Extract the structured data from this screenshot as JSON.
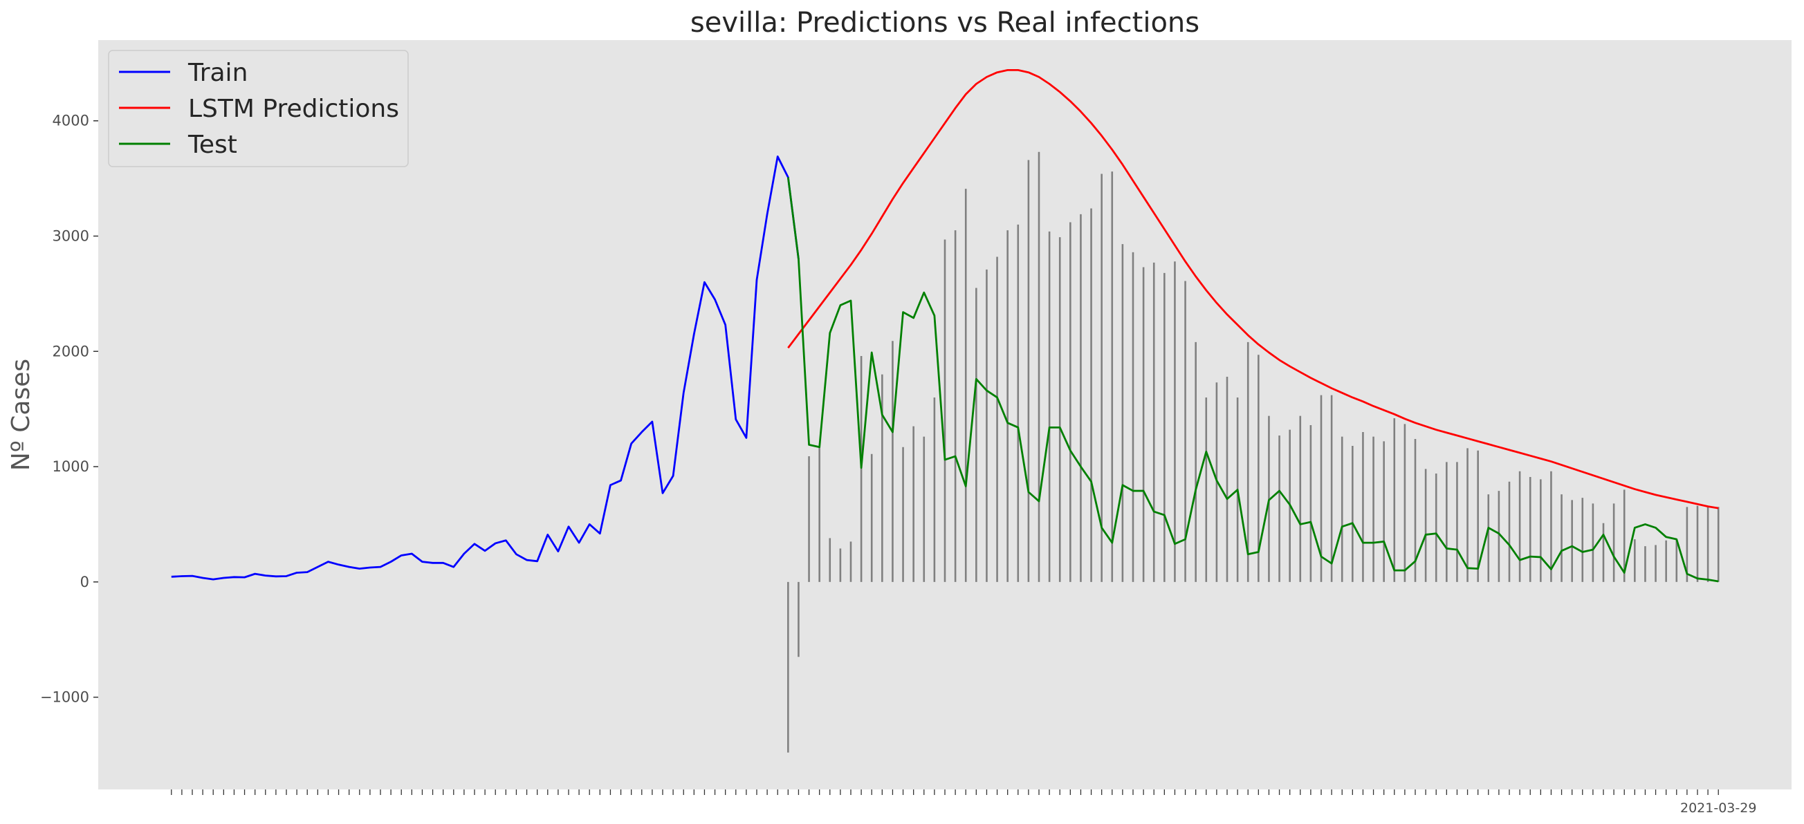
{
  "chart_data": {
    "type": "line",
    "title": "sevilla: Predictions vs Real infections",
    "xlabel": "",
    "ylabel": "Nº Cases",
    "yticks": [
      -1000,
      0,
      1000,
      2000,
      3000,
      4000
    ],
    "ytick_labels": [
      "−1000",
      "0",
      "1000",
      "2000",
      "3000",
      "4000"
    ],
    "ylim": [
      -1800,
      4700
    ],
    "xlim": [
      -7,
      155
    ],
    "grid": false,
    "legend_position": "top-left",
    "background_color": "#e5e5e5",
    "last_xtick_label": "2021-03-29",
    "series": [
      {
        "name": "Train",
        "color": "#0000ff",
        "start_index": 0,
        "values": [
          45,
          50,
          52,
          35,
          22,
          35,
          42,
          40,
          70,
          55,
          48,
          50,
          80,
          85,
          130,
          175,
          150,
          130,
          115,
          125,
          130,
          175,
          230,
          245,
          175,
          165,
          165,
          130,
          245,
          330,
          270,
          335,
          360,
          240,
          190,
          180,
          410,
          265,
          480,
          340,
          500,
          420,
          840,
          880,
          1200,
          1300,
          1390,
          770,
          920,
          1640,
          2150,
          2600,
          2450,
          2230,
          1410,
          1250,
          2620,
          3190,
          3690,
          3510,
          2800
        ]
      },
      {
        "name": "LSTM Predictions",
        "color": "#ff0000",
        "start_index": 59,
        "values": [
          2030,
          2150,
          2270,
          2390,
          2510,
          2630,
          2750,
          2880,
          3020,
          3170,
          3320,
          3460,
          3590,
          3720,
          3850,
          3980,
          4110,
          4230,
          4320,
          4380,
          4420,
          4440,
          4440,
          4420,
          4380,
          4320,
          4250,
          4170,
          4080,
          3980,
          3870,
          3750,
          3620,
          3480,
          3340,
          3200,
          3060,
          2920,
          2780,
          2650,
          2530,
          2420,
          2320,
          2230,
          2140,
          2060,
          1990,
          1925,
          1870,
          1820,
          1770,
          1725,
          1680,
          1640,
          1600,
          1565,
          1525,
          1490,
          1455,
          1415,
          1380,
          1350,
          1320,
          1295,
          1270,
          1245,
          1220,
          1195,
          1170,
          1145,
          1120,
          1095,
          1070,
          1045,
          1015,
          985,
          955,
          925,
          895,
          865,
          835,
          805,
          780,
          755,
          735,
          715,
          695,
          675,
          655,
          640
        ]
      },
      {
        "name": "Test",
        "color": "#008000",
        "start_index": 59,
        "values": [
          3510,
          2800,
          1190,
          1170,
          2160,
          2400,
          2440,
          990,
          1990,
          1450,
          1300,
          2340,
          2290,
          2510,
          2310,
          1060,
          1090,
          830,
          1760,
          1660,
          1600,
          1380,
          1340,
          780,
          700,
          1340,
          1340,
          1140,
          1000,
          870,
          470,
          340,
          840,
          790,
          790,
          610,
          580,
          330,
          370,
          800,
          1130,
          880,
          720,
          800,
          240,
          260,
          710,
          790,
          670,
          500,
          520,
          220,
          160,
          480,
          510,
          340,
          340,
          350,
          100,
          100,
          180,
          410,
          420,
          290,
          280,
          120,
          115,
          470,
          420,
          320,
          190,
          220,
          215,
          110,
          270,
          310,
          260,
          280,
          410,
          220,
          80,
          470,
          500,
          470,
          390,
          370,
          70,
          30,
          20,
          5
        ]
      }
    ],
    "bars": {
      "name": "residuals",
      "color": "#808080",
      "start_index": 59,
      "values": [
        -1480,
        -650,
        1090,
        1170,
        380,
        290,
        350,
        1960,
        1110,
        1800,
        2090,
        1170,
        1350,
        1260,
        1600,
        2970,
        3050,
        3410,
        2550,
        2710,
        2820,
        3050,
        3100,
        3660,
        3730,
        3040,
        2990,
        3120,
        3190,
        3240,
        3540,
        3560,
        2930,
        2860,
        2730,
        2770,
        2680,
        2780,
        2610,
        2080,
        1600,
        1730,
        1780,
        1600,
        2080,
        1970,
        1440,
        1270,
        1320,
        1440,
        1360,
        1620,
        1620,
        1260,
        1180,
        1300,
        1260,
        1220,
        1420,
        1370,
        1240,
        980,
        940,
        1040,
        1040,
        1160,
        1140,
        760,
        790,
        870,
        960,
        910,
        890,
        960,
        760,
        710,
        730,
        680,
        510,
        680,
        800,
        370,
        310,
        320,
        360,
        370,
        650,
        660,
        650,
        650
      ]
    }
  }
}
